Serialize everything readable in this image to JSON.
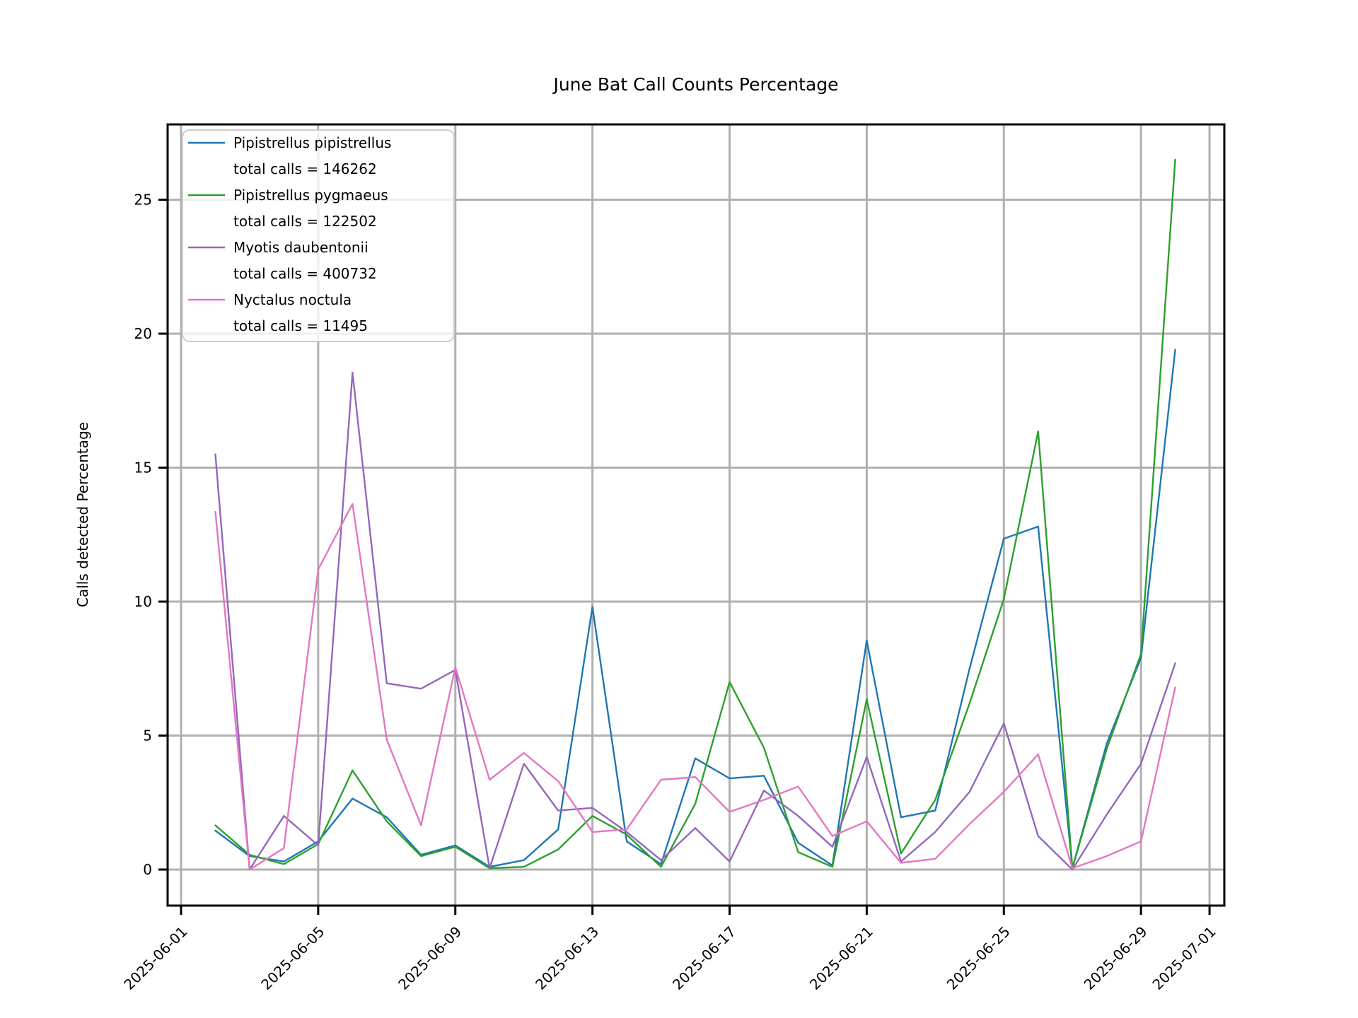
{
  "figure": {
    "background": "#ffffff"
  },
  "chart_data": {
    "type": "line",
    "title": "June Bat Call Counts Percentage",
    "xlabel": "",
    "ylabel": "Calls detected Percentage",
    "grid": true,
    "grid_color": "#b0b0b0",
    "legend_position": "upper left",
    "ylim": [
      -1.35,
      27.8
    ],
    "y_ticks": [
      0,
      5,
      10,
      15,
      20,
      25
    ],
    "x_tick_labels": [
      "2025-06-01",
      "2025-06-05",
      "2025-06-09",
      "2025-06-13",
      "2025-06-17",
      "2025-06-21",
      "2025-06-25",
      "2025-06-29",
      "2025-07-01"
    ],
    "x_dates": [
      "2025-06-02",
      "2025-06-03",
      "2025-06-04",
      "2025-06-05",
      "2025-06-06",
      "2025-06-07",
      "2025-06-08",
      "2025-06-09",
      "2025-06-10",
      "2025-06-11",
      "2025-06-12",
      "2025-06-13",
      "2025-06-14",
      "2025-06-15",
      "2025-06-16",
      "2025-06-17",
      "2025-06-18",
      "2025-06-19",
      "2025-06-20",
      "2025-06-21",
      "2025-06-22",
      "2025-06-23",
      "2025-06-24",
      "2025-06-25",
      "2025-06-26",
      "2025-06-27",
      "2025-06-28",
      "2025-06-29",
      "2025-06-30"
    ],
    "series": [
      {
        "name": "Pipistrellus pipistrellus",
        "legend_sublabel": "total calls = 146262",
        "total_calls": 146262,
        "color": "#1f77b4",
        "values": [
          1.45,
          0.5,
          0.3,
          1.05,
          2.65,
          1.95,
          0.55,
          0.9,
          0.1,
          0.35,
          1.5,
          9.8,
          1.05,
          0.2,
          4.15,
          3.4,
          3.5,
          1.0,
          0.15,
          8.55,
          1.95,
          2.2,
          7.5,
          12.35,
          12.8,
          0.05,
          4.7,
          7.9,
          19.4
        ]
      },
      {
        "name": "Pipistrellus pygmaeus",
        "legend_sublabel": "total calls = 122502",
        "total_calls": 122502,
        "color": "#2ca02c",
        "values": [
          1.65,
          0.55,
          0.2,
          0.95,
          3.7,
          1.8,
          0.5,
          0.85,
          0.05,
          0.1,
          0.75,
          2.0,
          1.3,
          0.1,
          2.45,
          7.0,
          4.55,
          0.65,
          0.1,
          6.35,
          0.6,
          2.6,
          6.2,
          10.1,
          16.35,
          0.05,
          4.5,
          8.05,
          26.5
        ]
      },
      {
        "name": "Myotis daubentonii",
        "legend_sublabel": "total calls = 400732",
        "total_calls": 400732,
        "color": "#9467bd",
        "values": [
          15.5,
          0.0,
          2.0,
          0.9,
          18.55,
          6.95,
          6.75,
          7.45,
          0.05,
          3.95,
          2.2,
          2.3,
          1.4,
          0.35,
          1.55,
          0.3,
          2.95,
          2.0,
          0.85,
          4.2,
          0.3,
          1.4,
          2.9,
          5.45,
          1.25,
          0.0,
          2.05,
          3.95,
          7.7
        ]
      },
      {
        "name": "Nyctalus noctula",
        "legend_sublabel": "total calls = 11495",
        "total_calls": 11495,
        "color": "#e377c2",
        "values": [
          13.35,
          0.0,
          0.8,
          11.2,
          13.65,
          4.85,
          1.65,
          7.55,
          3.35,
          4.35,
          3.3,
          1.4,
          1.5,
          3.35,
          3.45,
          2.15,
          2.6,
          3.1,
          1.25,
          1.8,
          0.25,
          0.4,
          1.7,
          2.9,
          4.3,
          0.05,
          0.5,
          1.05,
          6.8
        ]
      }
    ]
  }
}
